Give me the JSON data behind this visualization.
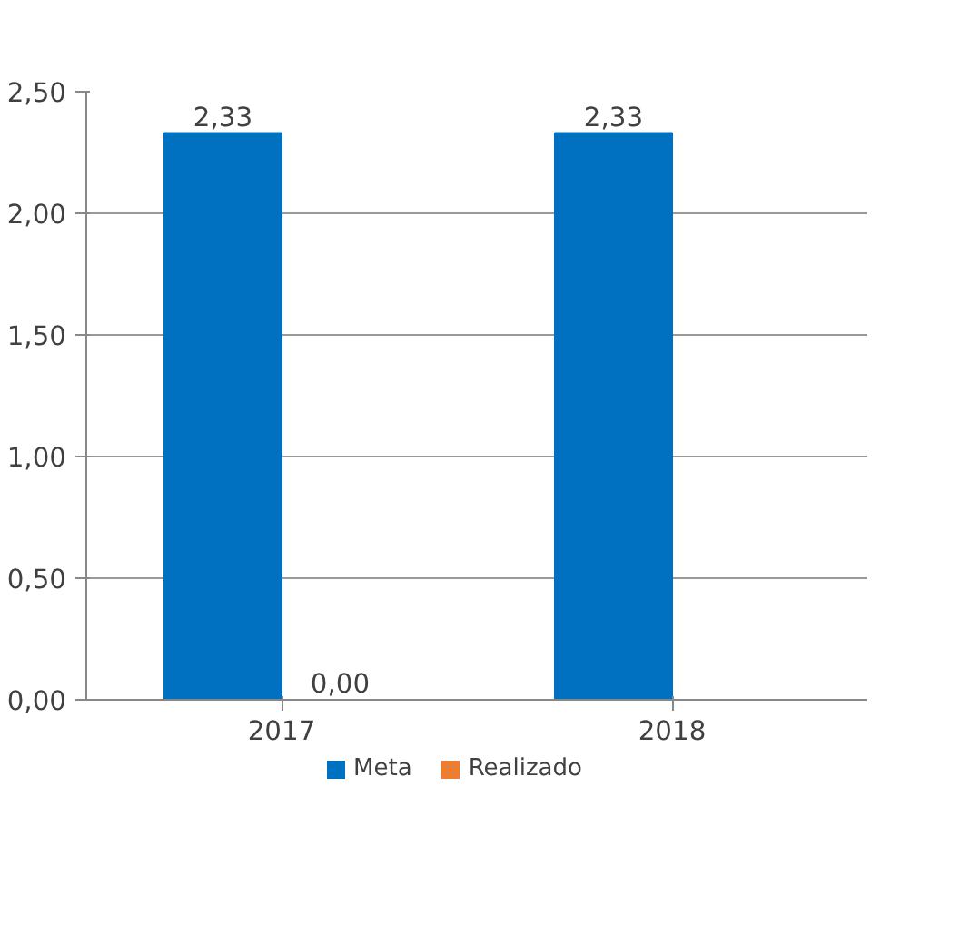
{
  "chart_data": {
    "type": "bar",
    "categories": [
      "2017",
      "2018"
    ],
    "series": [
      {
        "name": "Meta",
        "color": "#0070c0",
        "values": [
          2.33,
          2.33
        ],
        "value_labels": [
          "2,33",
          "2,33"
        ]
      },
      {
        "name": "Realizado",
        "color": "#ed7d31",
        "values": [
          0,
          null
        ],
        "value_labels": [
          "0,00",
          null
        ]
      }
    ],
    "ylim": [
      0,
      2.5
    ],
    "yticks": [
      {
        "value": 0,
        "label": "0,00"
      },
      {
        "value": 0.5,
        "label": "0,50"
      },
      {
        "value": 1,
        "label": "1,00"
      },
      {
        "value": 1.5,
        "label": "1,50"
      },
      {
        "value": 2,
        "label": "2,00"
      },
      {
        "value": 2.5,
        "label": "2,50"
      }
    ],
    "grid": "y",
    "legend": "bottom"
  }
}
